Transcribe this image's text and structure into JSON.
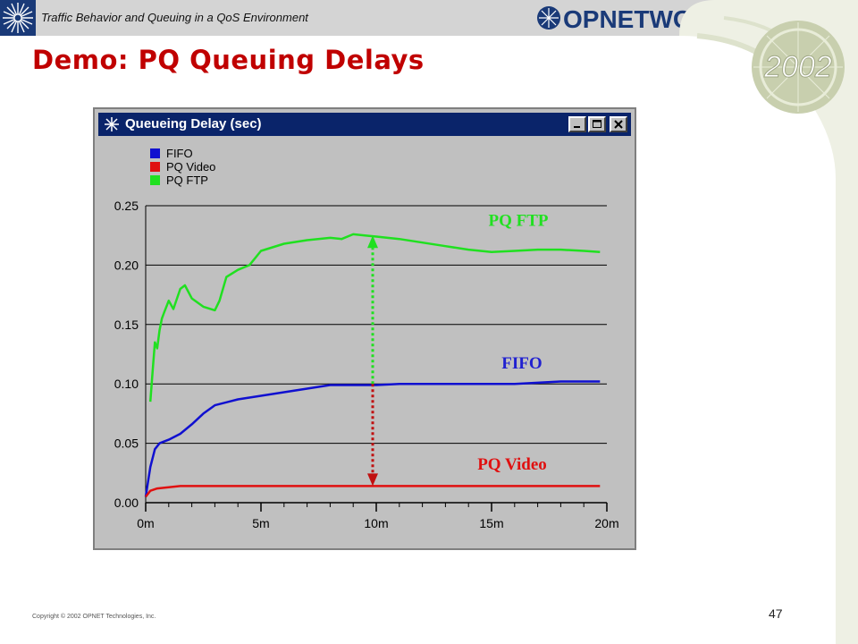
{
  "header": {
    "subtitle": "Traffic Behavior and Queuing in a QoS Environment",
    "brand": "OPNETWORK",
    "year_badge": "2002"
  },
  "page_title": "Demo:  PQ Queuing Delays",
  "window": {
    "title": "Queueing Delay (sec)",
    "buttons": [
      "minimize",
      "maximize",
      "close"
    ]
  },
  "footer": {
    "copyright": "Copyright © 2002 OPNET Technologies, Inc.",
    "page_number": "47"
  },
  "colors": {
    "title_red": "#c00000",
    "titlebar_blue": "#0a246a",
    "fifo": "#1010d0",
    "pq_video": "#e01010",
    "pq_ftp": "#20e020"
  },
  "annotations": {
    "pq_ftp": "PQ FTP",
    "fifo": "FIFO",
    "pq_video": "PQ Video"
  },
  "chart_data": {
    "type": "line",
    "title": "Queueing Delay (sec)",
    "xlabel": "",
    "ylabel": "",
    "xlim": [
      0,
      20
    ],
    "ylim": [
      0,
      0.25
    ],
    "x_ticks": [
      "0m",
      "5m",
      "10m",
      "15m",
      "20m"
    ],
    "y_ticks": [
      "0.00",
      "0.05",
      "0.10",
      "0.15",
      "0.20",
      "0.25"
    ],
    "grid": "horizontal",
    "legend_position": "top-left",
    "series": [
      {
        "name": "FIFO",
        "x": [
          0,
          0.2,
          0.4,
          0.6,
          1,
          1.5,
          2,
          2.5,
          3,
          4,
          5,
          6,
          7,
          8,
          9,
          10,
          11,
          12,
          13,
          14,
          15,
          16,
          17,
          18,
          19,
          19.7
        ],
        "values": [
          0.005,
          0.03,
          0.045,
          0.05,
          0.053,
          0.058,
          0.066,
          0.075,
          0.082,
          0.087,
          0.09,
          0.093,
          0.096,
          0.099,
          0.099,
          0.099,
          0.1,
          0.1,
          0.1,
          0.1,
          0.1,
          0.1,
          0.101,
          0.102,
          0.102,
          0.102
        ]
      },
      {
        "name": "PQ Video",
        "x": [
          0,
          0.2,
          0.5,
          1,
          1.5,
          2,
          3,
          5,
          10,
          15,
          19.7
        ],
        "values": [
          0.005,
          0.01,
          0.012,
          0.013,
          0.014,
          0.014,
          0.014,
          0.014,
          0.014,
          0.014,
          0.014
        ]
      },
      {
        "name": "PQ FTP",
        "x": [
          0.2,
          0.3,
          0.4,
          0.5,
          0.6,
          0.7,
          0.8,
          1,
          1.2,
          1.5,
          1.7,
          2,
          2.5,
          3,
          3.2,
          3.5,
          4,
          4.5,
          5,
          6,
          7,
          8,
          8.5,
          9,
          9.5,
          10,
          11,
          12,
          13,
          14,
          15,
          16,
          17,
          18,
          19,
          19.7
        ],
        "values": [
          0.085,
          0.11,
          0.135,
          0.13,
          0.145,
          0.155,
          0.16,
          0.17,
          0.163,
          0.18,
          0.183,
          0.172,
          0.165,
          0.162,
          0.17,
          0.19,
          0.196,
          0.2,
          0.212,
          0.218,
          0.221,
          0.223,
          0.222,
          0.226,
          0.225,
          0.224,
          0.222,
          0.219,
          0.216,
          0.213,
          0.211,
          0.212,
          0.213,
          0.213,
          0.212,
          0.211
        ]
      }
    ]
  }
}
